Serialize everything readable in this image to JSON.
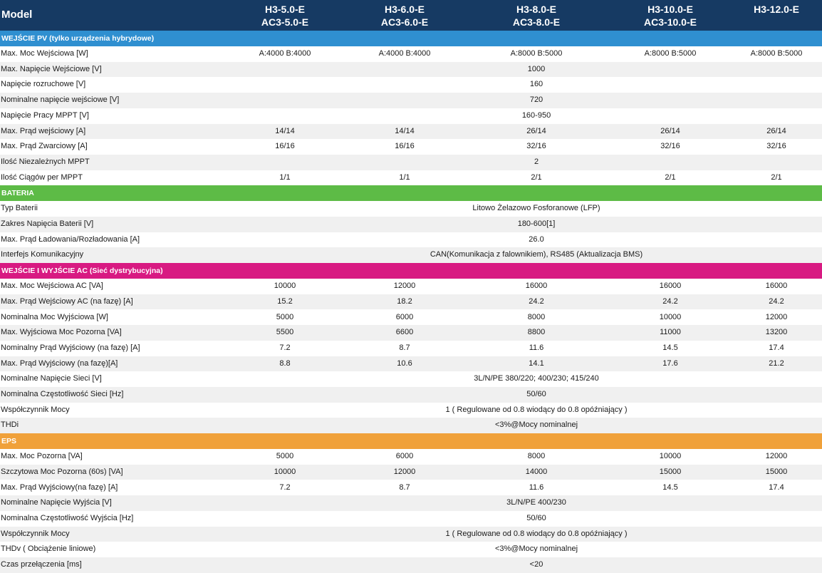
{
  "header": {
    "model_label": "Model",
    "columns": [
      {
        "line1": "H3-5.0-E",
        "line2": "AC3-5.0-E"
      },
      {
        "line1": "H3-6.0-E",
        "line2": "AC3-6.0-E"
      },
      {
        "line1": "H3-8.0-E",
        "line2": "AC3-8.0-E"
      },
      {
        "line1": "H3-10.0-E",
        "line2": "AC3-10.0-E"
      },
      {
        "line1": "H3-12.0-E",
        "line2": ""
      }
    ]
  },
  "colors": {
    "header_bg": "#163a63",
    "pv": "#2f8fd0",
    "battery": "#5dbb46",
    "ac": "#d81a82",
    "eps": "#f0a13a"
  },
  "sections": [
    {
      "title": "WEJŚCIE PV (tylko urządzenia hybrydowe)",
      "rows": [
        {
          "label": "Max. Moc Wejściowa [W]",
          "values": [
            "A:4000 B:4000",
            "A:4000 B:4000",
            "A:8000 B:5000",
            "A:8000 B:5000",
            "A:8000 B:5000"
          ]
        },
        {
          "label": "Max. Napięcie Wejściowe  [V]",
          "span": "1000"
        },
        {
          "label": "Napięcie rozruchowe [V]",
          "span": "160"
        },
        {
          "label": "Nominalne napięcie wejściowe [V]",
          "span": "720"
        },
        {
          "label": "Napięcie Pracy MPPT [V]",
          "span": "160-950"
        },
        {
          "label": "Max. Prąd wejściowy [A]",
          "values": [
            "14/14",
            "14/14",
            "26/14",
            "26/14",
            "26/14"
          ]
        },
        {
          "label": "Max. Prąd Zwarciowy [A]",
          "values": [
            "16/16",
            "16/16",
            "32/16",
            "32/16",
            "32/16"
          ]
        },
        {
          "label": "Ilość Niezależnych MPPT",
          "span": "2"
        },
        {
          "label": "Ilość Ciągów per MPPT",
          "values": [
            "1/1",
            "1/1",
            "2/1",
            "2/1",
            "2/1"
          ]
        }
      ]
    },
    {
      "title": "BATERIA",
      "rows": [
        {
          "label": "Typ Baterii",
          "span": "Litowo Żelazowo Fosforanowe (LFP)"
        },
        {
          "label": "Zakres Napięcia Baterii [V]",
          "span": "180-600[1]"
        },
        {
          "label": "Max. Prąd Ładowania/Rozładowania [A]",
          "span": "26.0"
        },
        {
          "label": "Interfejs Komunikacyjny",
          "span": "CAN(Komunikacja z falownikiem), RS485 (Aktualizacja BMS)"
        }
      ]
    },
    {
      "title": "WEJŚCIE I WYJŚCIE AC (Sieć dystrybucyjna)",
      "rows": [
        {
          "label": "Max. Moc Wejściowa AC [VA]",
          "values": [
            "10000",
            "12000",
            "16000",
            "16000",
            "16000"
          ]
        },
        {
          "label": "Max. Prąd Wejściowy AC (na fazę) [A]",
          "values": [
            "15.2",
            "18.2",
            "24.2",
            "24.2",
            "24.2"
          ]
        },
        {
          "label": "Nominalna Moc Wyjściowa [W]",
          "values": [
            "5000",
            "6000",
            "8000",
            "10000",
            "12000"
          ]
        },
        {
          "label": "Max. Wyjściowa Moc Pozorna [VA]",
          "values": [
            "5500",
            "6600",
            "8800",
            "11000",
            "13200"
          ]
        },
        {
          "label": "Nominalny Prąd Wyjściowy (na fazę) [A]",
          "values": [
            "7.2",
            "8.7",
            "11.6",
            "14.5",
            "17.4"
          ]
        },
        {
          "label": "Max. Prąd Wyjściowy (na fazę)[A]",
          "values": [
            "8.8",
            "10.6",
            "14.1",
            "17.6",
            "21.2"
          ]
        },
        {
          "label": "Nominalne Napięcie Sieci [V]",
          "span": "3L/N/PE  380/220; 400/230; 415/240"
        },
        {
          "label": "Nominalna Częstotliwość Sieci [Hz]",
          "span": "50/60"
        },
        {
          "label": "Współczynnik Mocy",
          "span": "1 ( Regulowane od 0.8 wiodący do 0.8 opóźniający )"
        },
        {
          "label": "THDi",
          "span": "<3%@Mocy nominalnej"
        }
      ]
    },
    {
      "title": "EPS",
      "rows": [
        {
          "label": "Max. Moc Pozorna [VA]",
          "values": [
            "5000",
            "6000",
            "8000",
            "10000",
            "12000"
          ]
        },
        {
          "label": "Szczytowa Moc Pozorna (60s) [VA]",
          "values": [
            "10000",
            "12000",
            "14000",
            "15000",
            "15000"
          ]
        },
        {
          "label": "Max. Prąd Wyjściowy(na fazę) [A]",
          "values": [
            "7.2",
            "8.7",
            "11.6",
            "14.5",
            "17.4"
          ]
        },
        {
          "label": "Nominalne Napięcie Wyjścia [V]",
          "span": "3L/N/PE  400/230"
        },
        {
          "label": "Nominalna Częstotliwość Wyjścia [Hz]",
          "span": "50/60"
        },
        {
          "label": "Współczynnik Mocy",
          "span": "1 ( Regulowane od 0.8 wiodący do 0.8 opóźniający )"
        },
        {
          "label": "THDv ( Obciążenie liniowe)",
          "span": "<3%@Mocy nominalnej"
        },
        {
          "label": "Czas przełączenia [ms]",
          "span": "<20"
        }
      ]
    }
  ]
}
